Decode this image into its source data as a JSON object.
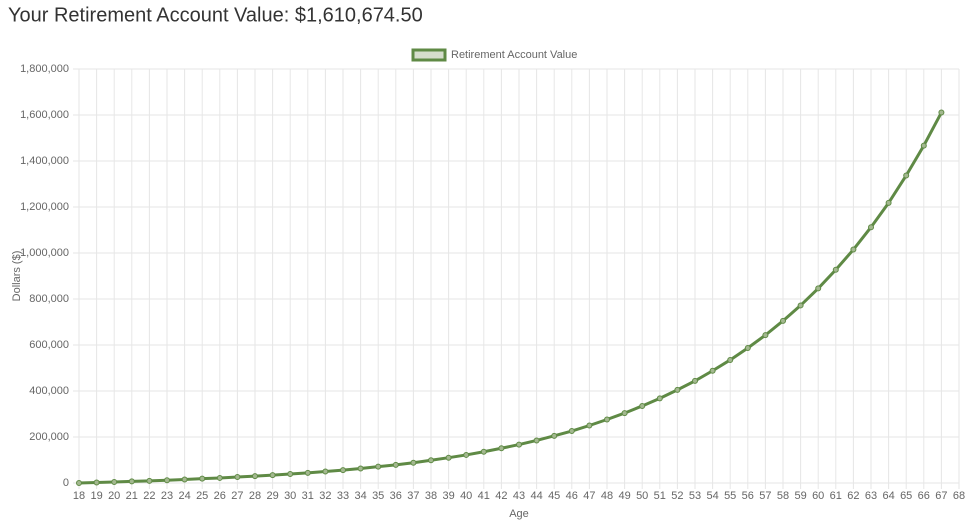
{
  "chart_data": {
    "type": "line",
    "title": "Your Retirement Account Value: $1,610,674.50",
    "x_label": "Age",
    "y_label": "Dollars ($)",
    "categories": [
      "18",
      "19",
      "20",
      "21",
      "22",
      "23",
      "24",
      "25",
      "26",
      "27",
      "28",
      "29",
      "30",
      "31",
      "32",
      "33",
      "34",
      "35",
      "36",
      "37",
      "38",
      "39",
      "40",
      "41",
      "42",
      "43",
      "44",
      "45",
      "46",
      "47",
      "48",
      "49",
      "50",
      "51",
      "52",
      "53",
      "54",
      "55",
      "56",
      "57",
      "58",
      "59",
      "60",
      "61",
      "62",
      "63",
      "64",
      "65",
      "66",
      "67",
      "68"
    ],
    "series": [
      {
        "name": "Retirement Account Value",
        "color": "#5f8a45",
        "values": [
          0,
          2000,
          4500,
          7000,
          9000,
          12000,
          15000,
          19000,
          22000,
          26000,
          30000,
          34000,
          39000,
          44000,
          50000,
          56000,
          63000,
          71000,
          79000,
          88000,
          99000,
          110000,
          122000,
          136000,
          151000,
          167000,
          185000,
          205000,
          226000,
          250000,
          276000,
          304000,
          335000,
          368000,
          405000,
          444000,
          488000,
          535000,
          587000,
          643000,
          705000,
          772000,
          846000,
          927000,
          1015000,
          1112000,
          1218000,
          1337000,
          1467000,
          1610674.5,
          null
        ]
      }
    ],
    "ylim": [
      0,
      1800000
    ],
    "yticks": [
      0,
      {
        "value": 200000,
        "label": "200,000"
      },
      {
        "value": 400000,
        "label": "400,000"
      },
      {
        "value": 600000,
        "label": "600,000"
      },
      {
        "value": 800000,
        "label": "800,000"
      },
      {
        "value": 1000000,
        "label": "1,000,000"
      },
      {
        "value": 1200000,
        "label": "1,200,000"
      },
      {
        "value": 1400000,
        "label": "1,400,000"
      },
      {
        "value": 1600000,
        "label": "1,600,000"
      },
      {
        "value": 1800000,
        "label": "1,800,000"
      }
    ],
    "grid": true,
    "legend": "top"
  }
}
